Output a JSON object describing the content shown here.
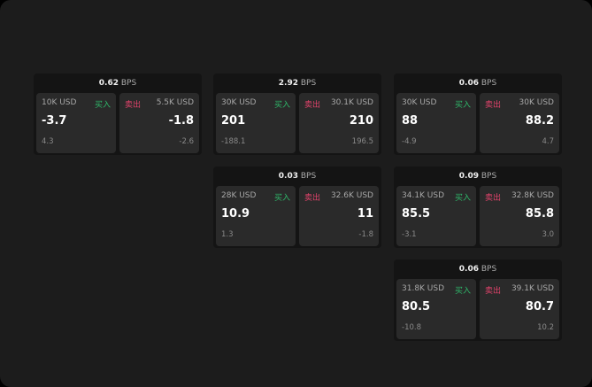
{
  "unit": "BPS",
  "buy_label": "买入",
  "sell_label": "卖出",
  "colors": {
    "buy": "#2fb86a",
    "sell": "#e0436b",
    "background": "#1c1c1c"
  },
  "cards": [
    {
      "spread": "0.62",
      "bid": {
        "size": "10K USD",
        "price": "-3.7",
        "sub": "4.3"
      },
      "ask": {
        "size": "5.5K USD",
        "price": "-1.8",
        "sub": "-2.6"
      }
    },
    {
      "spread": "2.92",
      "bid": {
        "size": "30K USD",
        "price": "201",
        "sub": "-188.1"
      },
      "ask": {
        "size": "30.1K USD",
        "price": "210",
        "sub": "196.5"
      }
    },
    {
      "spread": "0.06",
      "bid": {
        "size": "30K USD",
        "price": "88",
        "sub": "-4.9"
      },
      "ask": {
        "size": "30K USD",
        "price": "88.2",
        "sub": "4.7"
      }
    },
    {
      "spread": "0.03",
      "bid": {
        "size": "28K USD",
        "price": "10.9",
        "sub": "1.3"
      },
      "ask": {
        "size": "32.6K USD",
        "price": "11",
        "sub": "-1.8"
      }
    },
    {
      "spread": "0.09",
      "bid": {
        "size": "34.1K USD",
        "price": "85.5",
        "sub": "-3.1"
      },
      "ask": {
        "size": "32.8K USD",
        "price": "85.8",
        "sub": "3.0"
      }
    },
    {
      "spread": "0.06",
      "bid": {
        "size": "31.8K USD",
        "price": "80.5",
        "sub": "-10.8"
      },
      "ask": {
        "size": "39.1K USD",
        "price": "80.7",
        "sub": "10.2"
      }
    }
  ]
}
